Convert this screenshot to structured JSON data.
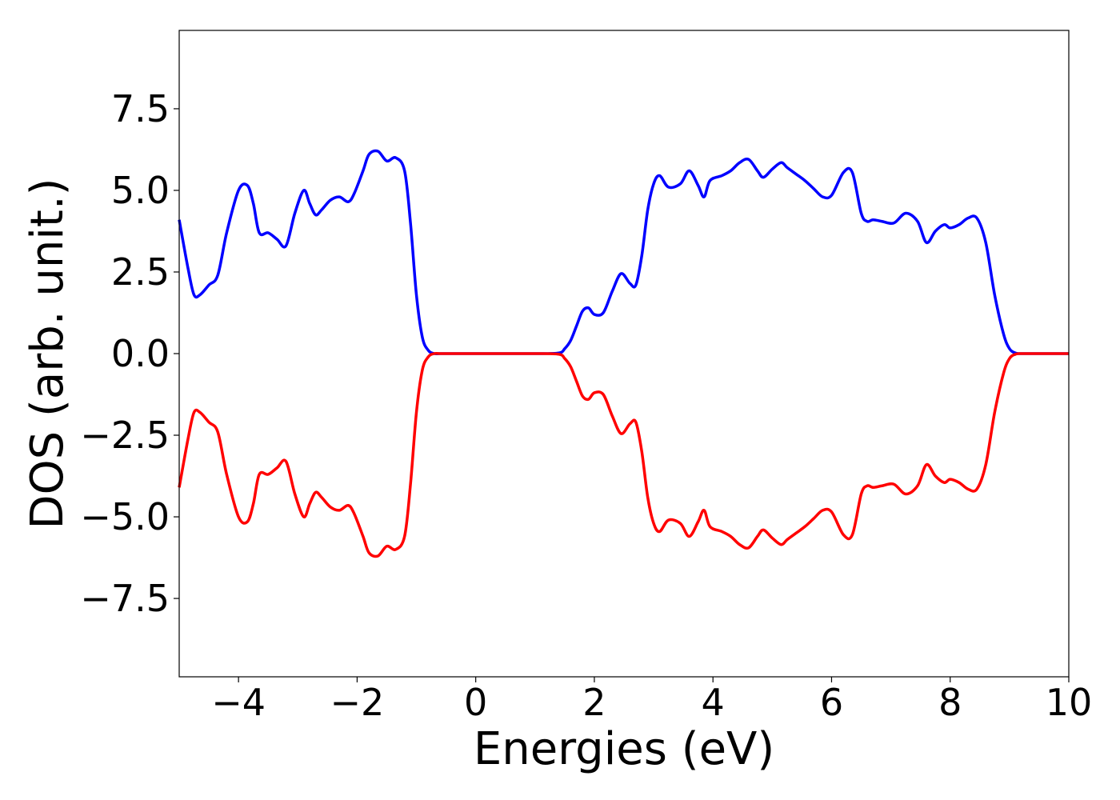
{
  "chart_data": {
    "type": "line",
    "title": "",
    "xlabel": "Energies (eV)",
    "ylabel": "DOS (arb. unit.)",
    "xlim": [
      -5,
      10
    ],
    "ylim": [
      -9.9,
      9.9
    ],
    "xticks": [
      -4,
      -2,
      0,
      2,
      4,
      6,
      8,
      10
    ],
    "xtick_labels": [
      "−4",
      "−2",
      "0",
      "2",
      "4",
      "6",
      "8",
      "10"
    ],
    "yticks": [
      7.5,
      5.0,
      2.5,
      0.0,
      -2.5,
      -5.0,
      -7.5
    ],
    "ytick_labels": [
      "7.5",
      "5.0",
      "2.5",
      "0.0",
      "−2.5",
      "−5.0",
      "−7.5"
    ],
    "grid": false,
    "legend": "none",
    "series": [
      {
        "color": "#0000ff",
        "x": [
          -5.0,
          -4.85,
          -4.75,
          -4.65,
          -4.5,
          -4.35,
          -4.2,
          -4.0,
          -3.85,
          -3.75,
          -3.65,
          -3.5,
          -3.35,
          -3.2,
          -3.05,
          -2.9,
          -2.8,
          -2.7,
          -2.6,
          -2.45,
          -2.3,
          -2.15,
          -2.05,
          -1.9,
          -1.8,
          -1.65,
          -1.5,
          -1.35,
          -1.2,
          -1.1,
          -1.0,
          -0.9,
          -0.8,
          -0.7,
          -0.6,
          -0.5,
          0.0,
          0.5,
          1.0,
          1.4,
          1.5,
          1.6,
          1.7,
          1.8,
          1.9,
          2.0,
          2.15,
          2.3,
          2.45,
          2.6,
          2.7,
          2.8,
          2.9,
          3.0,
          3.1,
          3.25,
          3.45,
          3.6,
          3.75,
          3.85,
          3.95,
          4.15,
          4.3,
          4.45,
          4.6,
          4.75,
          4.85,
          5.0,
          5.15,
          5.25,
          5.4,
          5.55,
          5.7,
          5.85,
          6.0,
          6.2,
          6.35,
          6.5,
          6.6,
          6.7,
          6.85,
          7.05,
          7.25,
          7.45,
          7.6,
          7.75,
          7.9,
          8.0,
          8.15,
          8.3,
          8.45,
          8.6,
          8.75,
          8.9,
          9.0,
          9.1,
          9.2,
          9.3,
          9.4,
          9.5,
          9.7,
          10.0
        ],
        "y": [
          4.1,
          2.6,
          1.8,
          1.8,
          2.1,
          2.4,
          3.7,
          5.0,
          5.15,
          4.6,
          3.7,
          3.7,
          3.5,
          3.3,
          4.3,
          5.0,
          4.6,
          4.25,
          4.4,
          4.7,
          4.8,
          4.65,
          4.9,
          5.6,
          6.1,
          6.2,
          5.9,
          6.0,
          5.6,
          4.0,
          1.8,
          0.5,
          0.1,
          0.0,
          0.0,
          0.0,
          0.0,
          0.0,
          0.0,
          0.02,
          0.15,
          0.4,
          0.85,
          1.3,
          1.4,
          1.2,
          1.25,
          1.9,
          2.45,
          2.15,
          2.1,
          3.0,
          4.4,
          5.2,
          5.45,
          5.1,
          5.2,
          5.6,
          5.15,
          4.8,
          5.3,
          5.45,
          5.6,
          5.85,
          5.95,
          5.6,
          5.4,
          5.65,
          5.85,
          5.7,
          5.5,
          5.3,
          5.05,
          4.8,
          4.85,
          5.55,
          5.55,
          4.3,
          4.05,
          4.1,
          4.05,
          4.0,
          4.3,
          4.05,
          3.4,
          3.75,
          3.95,
          3.85,
          3.95,
          4.15,
          4.15,
          3.4,
          1.8,
          0.6,
          0.15,
          0.02,
          0.0,
          0.0,
          0.0,
          0.0,
          0.0,
          0.0
        ]
      },
      {
        "color": "#ff0000",
        "x": [
          -5.0,
          -4.85,
          -4.75,
          -4.65,
          -4.5,
          -4.35,
          -4.2,
          -4.0,
          -3.85,
          -3.75,
          -3.65,
          -3.5,
          -3.35,
          -3.2,
          -3.05,
          -2.9,
          -2.8,
          -2.7,
          -2.6,
          -2.45,
          -2.3,
          -2.15,
          -2.05,
          -1.9,
          -1.8,
          -1.65,
          -1.5,
          -1.35,
          -1.2,
          -1.1,
          -1.0,
          -0.9,
          -0.8,
          -0.7,
          -0.6,
          -0.5,
          0.0,
          0.5,
          1.0,
          1.4,
          1.5,
          1.6,
          1.7,
          1.8,
          1.9,
          2.0,
          2.15,
          2.3,
          2.45,
          2.6,
          2.7,
          2.8,
          2.9,
          3.0,
          3.1,
          3.25,
          3.45,
          3.6,
          3.75,
          3.85,
          3.95,
          4.15,
          4.3,
          4.45,
          4.6,
          4.75,
          4.85,
          5.0,
          5.15,
          5.25,
          5.4,
          5.55,
          5.7,
          5.85,
          6.0,
          6.2,
          6.35,
          6.5,
          6.6,
          6.7,
          6.85,
          7.05,
          7.25,
          7.45,
          7.6,
          7.75,
          7.9,
          8.0,
          8.15,
          8.3,
          8.45,
          8.6,
          8.75,
          8.9,
          9.0,
          9.1,
          9.2,
          9.3,
          9.4,
          9.5,
          9.7,
          10.0
        ],
        "y": [
          -4.1,
          -2.6,
          -1.8,
          -1.8,
          -2.1,
          -2.4,
          -3.7,
          -5.0,
          -5.15,
          -4.6,
          -3.7,
          -3.7,
          -3.5,
          -3.3,
          -4.3,
          -5.0,
          -4.6,
          -4.25,
          -4.4,
          -4.7,
          -4.8,
          -4.65,
          -4.9,
          -5.6,
          -6.1,
          -6.2,
          -5.9,
          -6.0,
          -5.6,
          -4.0,
          -1.8,
          -0.5,
          -0.1,
          0.0,
          0.0,
          0.0,
          0.0,
          0.0,
          0.0,
          -0.02,
          -0.15,
          -0.4,
          -0.85,
          -1.3,
          -1.4,
          -1.2,
          -1.25,
          -1.9,
          -2.45,
          -2.15,
          -2.1,
          -3.0,
          -4.4,
          -5.2,
          -5.45,
          -5.1,
          -5.2,
          -5.6,
          -5.15,
          -4.8,
          -5.3,
          -5.45,
          -5.6,
          -5.85,
          -5.95,
          -5.6,
          -5.4,
          -5.65,
          -5.85,
          -5.7,
          -5.5,
          -5.3,
          -5.05,
          -4.8,
          -4.85,
          -5.55,
          -5.55,
          -4.3,
          -4.05,
          -4.1,
          -4.05,
          -4.0,
          -4.3,
          -4.05,
          -3.4,
          -3.75,
          -3.95,
          -3.85,
          -3.95,
          -4.15,
          -4.15,
          -3.4,
          -1.8,
          -0.6,
          -0.15,
          -0.02,
          0.0,
          0.0,
          0.0,
          0.0,
          0.0,
          0.0
        ]
      }
    ]
  }
}
